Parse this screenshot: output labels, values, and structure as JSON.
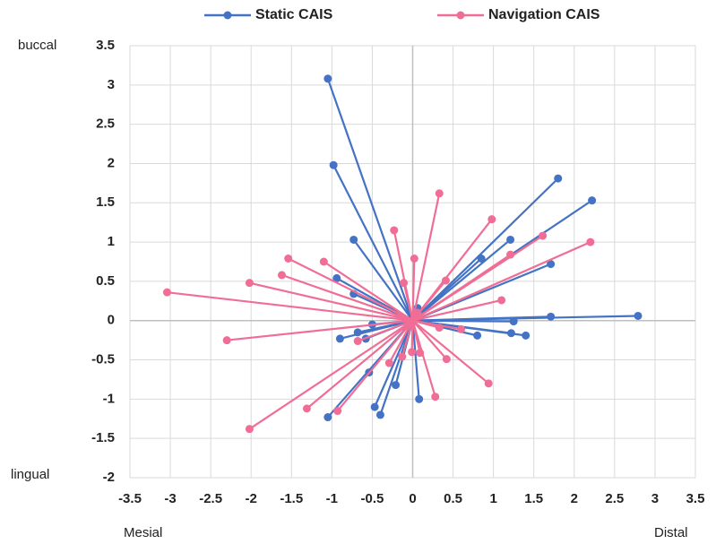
{
  "chart_data": {
    "type": "scatter",
    "connect_to_origin": true,
    "grid": true,
    "y_label_top": "buccal",
    "y_label_bottom": "lingual",
    "x_label_left": "Mesial",
    "x_label_right": "Distal",
    "xlim": [
      -3.5,
      3.5
    ],
    "xticks": [
      -3.5,
      -3,
      -2.5,
      -2,
      -1.5,
      -1,
      -0.5,
      0,
      0.5,
      1,
      1.5,
      2,
      2.5,
      3,
      3.5
    ],
    "ylim": [
      -2,
      3.5
    ],
    "yticks": [
      -2,
      -1.5,
      -1,
      -0.5,
      0,
      0.5,
      1,
      1.5,
      2,
      2.5,
      3,
      3.5
    ],
    "series": [
      {
        "name": "Static CAIS",
        "color": "#4472c4",
        "x": [
          -1.05,
          -0.98,
          1.8,
          2.22,
          -0.73,
          1.21,
          0.85,
          1.71,
          -0.94,
          -0.73,
          0.06,
          2.79,
          1.71,
          1.25,
          -0.5,
          -0.68,
          -0.9,
          -0.58,
          0.8,
          1.22,
          1.4,
          -0.54,
          -0.21,
          0.08,
          -1.05,
          -0.47,
          -0.4
        ],
        "y": [
          3.08,
          1.98,
          1.81,
          1.53,
          1.03,
          1.03,
          0.79,
          0.72,
          0.54,
          0.34,
          0.16,
          0.06,
          0.05,
          -0.01,
          -0.05,
          -0.15,
          -0.23,
          -0.23,
          -0.19,
          -0.16,
          -0.19,
          -0.66,
          -0.82,
          -1.0,
          -1.23,
          -1.1,
          -1.2
        ]
      },
      {
        "name": "Navigation CAIS",
        "color": "#f06e96",
        "x": [
          -3.04,
          -2.3,
          -2.02,
          -2.02,
          -1.62,
          -1.54,
          -1.1,
          -1.31,
          -0.93,
          -0.68,
          -0.23,
          0.33,
          0.02,
          -0.11,
          0.98,
          1.61,
          2.2,
          1.21,
          0.41,
          1.1,
          0.06,
          0.33,
          0.6,
          0.42,
          0.28,
          0.94,
          -0.01,
          0.09,
          -0.13,
          -0.29
        ],
        "y": [
          0.36,
          -0.25,
          -1.38,
          0.48,
          0.58,
          0.79,
          0.75,
          -1.12,
          -1.15,
          -0.26,
          1.15,
          1.62,
          0.79,
          0.48,
          1.29,
          1.08,
          1.0,
          0.84,
          0.51,
          0.26,
          0.1,
          -0.09,
          -0.11,
          -0.49,
          -0.97,
          -0.8,
          -0.4,
          -0.41,
          -0.46,
          -0.54
        ]
      }
    ]
  }
}
